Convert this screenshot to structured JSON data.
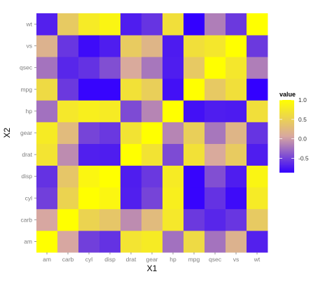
{
  "chart_data": {
    "type": "heatmap",
    "xlabel": "X1",
    "ylabel": "X2",
    "x_categories": [
      "am",
      "carb",
      "cyl",
      "disp",
      "drat",
      "gear",
      "hp",
      "mpg",
      "qsec",
      "vs",
      "wt"
    ],
    "y_categories": [
      "am",
      "carb",
      "cyl",
      "disp",
      "drat",
      "gear",
      "hp",
      "mpg",
      "qsec",
      "vs",
      "wt"
    ],
    "values": [
      [
        1.0,
        0.06,
        -0.52,
        -0.59,
        0.71,
        0.79,
        -0.24,
        0.6,
        -0.23,
        0.17,
        -0.69
      ],
      [
        0.06,
        1.0,
        0.53,
        0.39,
        -0.09,
        0.27,
        0.75,
        -0.55,
        -0.66,
        -0.57,
        0.43
      ],
      [
        -0.52,
        0.53,
        1.0,
        0.9,
        -0.7,
        -0.49,
        0.83,
        -0.85,
        -0.59,
        -0.81,
        0.78
      ],
      [
        -0.59,
        0.39,
        0.9,
        1.0,
        -0.71,
        -0.56,
        0.79,
        -0.85,
        -0.43,
        -0.71,
        0.89
      ],
      [
        0.71,
        -0.09,
        -0.7,
        -0.71,
        1.0,
        0.7,
        -0.45,
        0.68,
        0.09,
        0.44,
        -0.71
      ],
      [
        0.79,
        0.27,
        -0.49,
        -0.56,
        0.7,
        1.0,
        -0.13,
        0.48,
        -0.21,
        0.21,
        -0.58
      ],
      [
        -0.24,
        0.75,
        0.83,
        0.79,
        -0.45,
        -0.13,
        1.0,
        -0.78,
        -0.71,
        -0.72,
        0.66
      ],
      [
        0.6,
        -0.55,
        -0.85,
        -0.85,
        0.68,
        0.48,
        -0.78,
        1.0,
        0.42,
        0.66,
        -0.87
      ],
      [
        -0.23,
        -0.66,
        -0.59,
        -0.43,
        0.09,
        -0.21,
        -0.71,
        0.42,
        1.0,
        0.74,
        -0.17
      ],
      [
        0.17,
        -0.57,
        -0.81,
        -0.71,
        0.44,
        0.21,
        -0.72,
        0.66,
        0.74,
        1.0,
        -0.55
      ],
      [
        -0.69,
        0.43,
        0.78,
        0.89,
        -0.71,
        -0.58,
        0.66,
        -0.87,
        -0.17,
        -0.55,
        1.0
      ]
    ],
    "legend": {
      "title": "value",
      "position": "right",
      "breaks": [
        1.0,
        0.5,
        0.0,
        -0.5
      ],
      "break_labels": [
        "1.0",
        "0.5",
        "0.0",
        "-0.5"
      ],
      "range": [
        -0.87,
        1.0
      ]
    },
    "colors": {
      "low": "#3300ff",
      "mid": "#d8a8a0",
      "high": "#ffff00",
      "panel_background": "#e5e5e5",
      "tick_label": "#7f7f7f"
    },
    "grid": false
  }
}
